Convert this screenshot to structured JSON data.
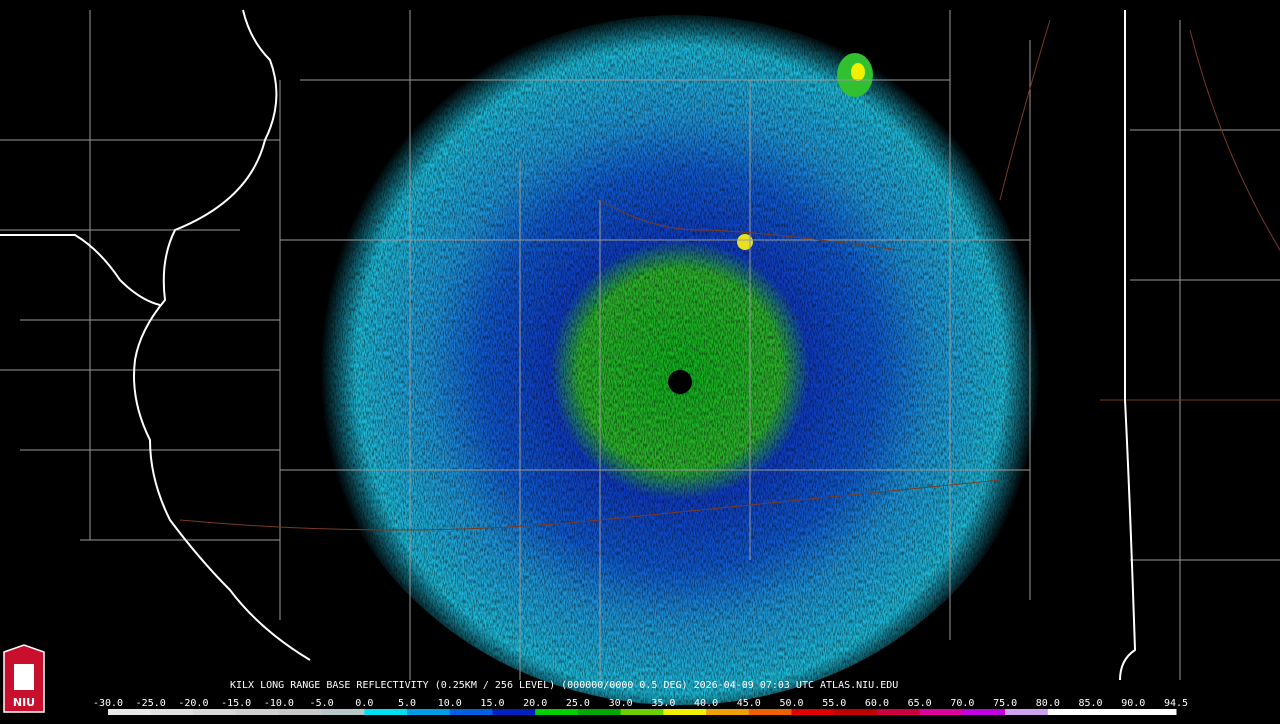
{
  "caption": "KILX LONG RANGE BASE REFLECTIVITY (0.25KM / 256 LEVEL) (000000/0000 0.5 DEG) 2026-04-09 07:03 UTC  ATLAS.NIU.EDU",
  "logo": {
    "text": "NIU"
  },
  "color_scale": {
    "labels": [
      "-30.0",
      "-25.0",
      "-20.0",
      "-15.0",
      "-10.0",
      "-5.0",
      "0.0",
      "5.0",
      "10.0",
      "15.0",
      "20.0",
      "25.0",
      "30.0",
      "35.0",
      "40.0",
      "45.0",
      "50.0",
      "55.0",
      "60.0",
      "65.0",
      "70.0",
      "75.0",
      "80.0",
      "85.0",
      "90.0",
      "94.5"
    ],
    "colors": [
      "#e8e8e8",
      "#e0e0e0",
      "#d8d8d8",
      "#d0d0d0",
      "#c8c8c8",
      "#b8c8c8",
      "#00e0f0",
      "#009ce8",
      "#0060e0",
      "#0020c0",
      "#00d000",
      "#00a800",
      "#6cd000",
      "#f0f000",
      "#f0a000",
      "#f06000",
      "#e00000",
      "#c00000",
      "#d00040",
      "#e000a0",
      "#c000e0",
      "#d0a0f0",
      "#ffffff",
      "#ffffff",
      "#ffffff"
    ]
  }
}
